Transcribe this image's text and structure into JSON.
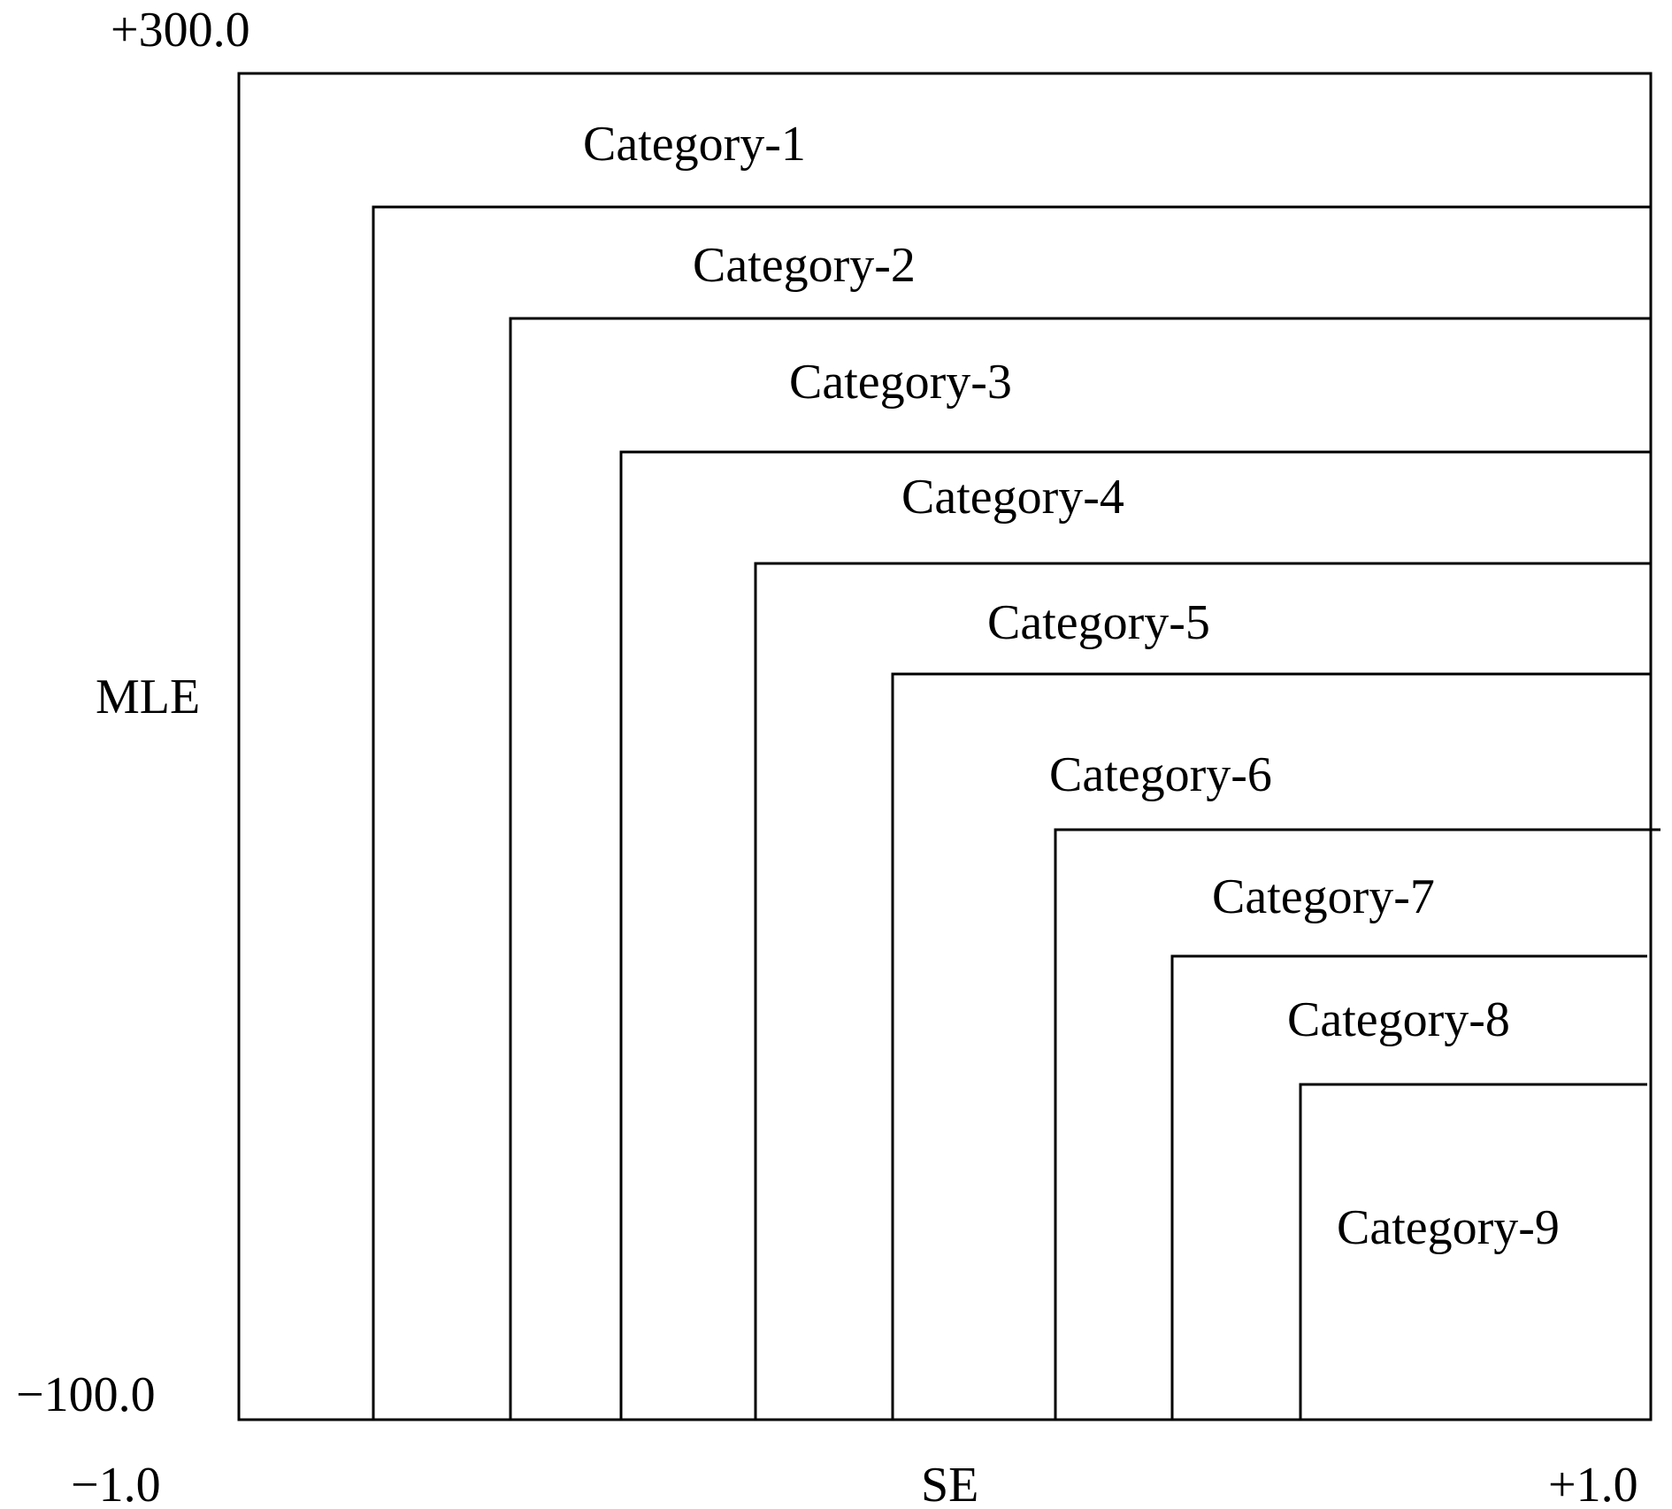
{
  "axes": {
    "y_top_label": "+300.0",
    "y_bottom_label": "−100.0",
    "y_title": "MLE",
    "x_left_label": "−1.0",
    "x_right_label": "+1.0",
    "x_title": "SE"
  },
  "categories": [
    {
      "label": "Category-1"
    },
    {
      "label": "Category-2"
    },
    {
      "label": "Category-3"
    },
    {
      "label": "Category-4"
    },
    {
      "label": "Category-5"
    },
    {
      "label": "Category-6"
    },
    {
      "label": "Category-7"
    },
    {
      "label": "Category-8"
    },
    {
      "label": "Category-9"
    }
  ],
  "colors": {
    "line": "#000000",
    "background": "#ffffff"
  }
}
